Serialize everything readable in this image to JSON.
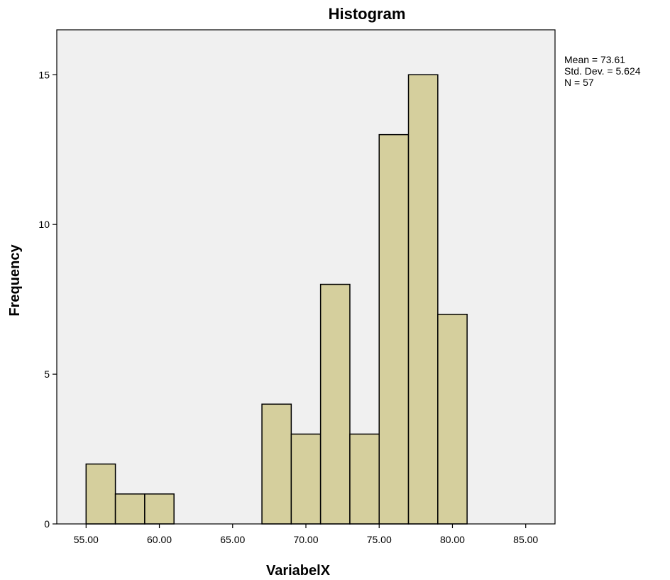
{
  "chart_data": {
    "type": "bar",
    "title": "Histogram",
    "xlabel": "VariabelX",
    "ylabel": "Frequency",
    "xlim": [
      53,
      87
    ],
    "ylim": [
      0,
      16.5
    ],
    "x_ticks": [
      55,
      60,
      65,
      70,
      75,
      80,
      85
    ],
    "x_tick_labels": [
      "55.00",
      "60.00",
      "65.00",
      "70.00",
      "75.00",
      "80.00",
      "85.00"
    ],
    "y_ticks": [
      0,
      5,
      10,
      15
    ],
    "y_tick_labels": [
      "0",
      "5",
      "10",
      "15"
    ],
    "bins": [
      {
        "start": 55,
        "end": 57,
        "value": 2
      },
      {
        "start": 57,
        "end": 59,
        "value": 1
      },
      {
        "start": 59,
        "end": 61,
        "value": 1
      },
      {
        "start": 61,
        "end": 63,
        "value": 0
      },
      {
        "start": 63,
        "end": 65,
        "value": 0
      },
      {
        "start": 65,
        "end": 67,
        "value": 0
      },
      {
        "start": 67,
        "end": 69,
        "value": 4
      },
      {
        "start": 69,
        "end": 71,
        "value": 3
      },
      {
        "start": 71,
        "end": 73,
        "value": 8
      },
      {
        "start": 73,
        "end": 75,
        "value": 3
      },
      {
        "start": 75,
        "end": 77,
        "value": 13
      },
      {
        "start": 77,
        "end": 79,
        "value": 15
      },
      {
        "start": 79,
        "end": 81,
        "value": 7
      }
    ],
    "stats": [
      "Mean = 73.61",
      "Std. Dev. = 5.624",
      "N = 57"
    ],
    "grid": false,
    "legend": "none"
  },
  "colors": {
    "bar_fill": "#d5cf9d",
    "bar_stroke": "#000000",
    "plot_background": "#f0f0f0",
    "axis": "#000000"
  }
}
